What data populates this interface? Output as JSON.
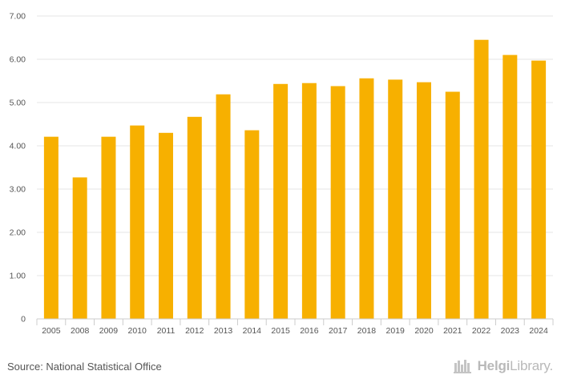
{
  "chart_data": {
    "type": "bar",
    "categories": [
      "2005",
      "2008",
      "2009",
      "2010",
      "2011",
      "2012",
      "2013",
      "2014",
      "2015",
      "2016",
      "2017",
      "2018",
      "2019",
      "2020",
      "2021",
      "2022",
      "2023",
      "2024"
    ],
    "values": [
      4.21,
      3.27,
      4.21,
      4.47,
      4.3,
      4.67,
      5.19,
      4.36,
      5.43,
      5.45,
      5.38,
      5.56,
      5.53,
      5.47,
      5.25,
      6.45,
      6.1,
      5.97
    ],
    "yticks": [
      "0",
      "1.00",
      "2.00",
      "3.00",
      "4.00",
      "5.00",
      "6.00",
      "7.00"
    ],
    "ylim": [
      0,
      7
    ],
    "title": "",
    "xlabel": "",
    "ylabel": "",
    "bar_color": "#f7b000",
    "grid": true
  },
  "footer": {
    "source": "Source: National Statistical Office",
    "logo_text_bold": "Helgi",
    "logo_text_light": "Library."
  }
}
